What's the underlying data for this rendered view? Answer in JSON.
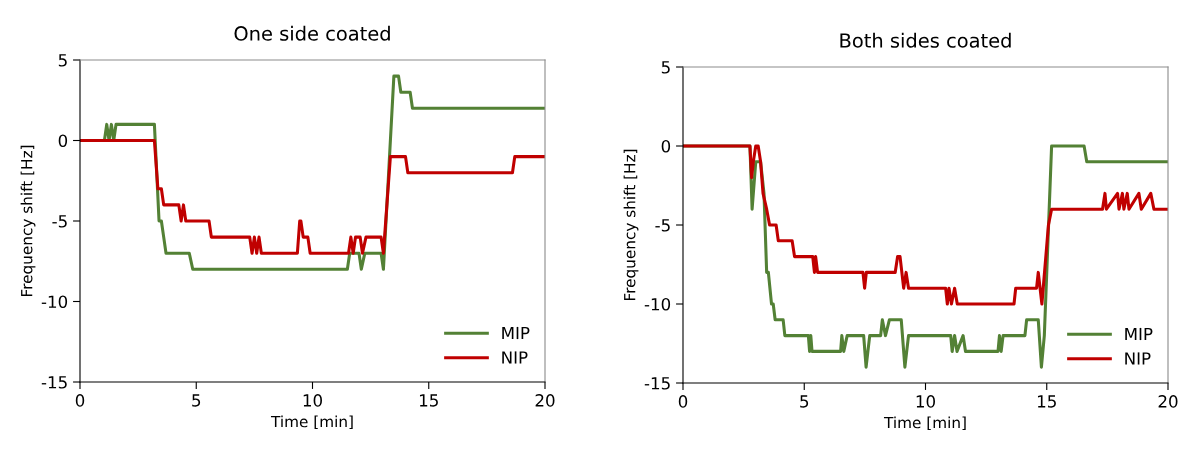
{
  "chart_data": [
    {
      "type": "line",
      "title": "One side coated",
      "xlabel": "Time [min]",
      "ylabel": "Frequency shift [Hz]",
      "xlim": [
        0,
        20
      ],
      "ylim": [
        -15,
        5
      ],
      "xticks": [
        0,
        5,
        10,
        15,
        20
      ],
      "yticks": [
        5,
        0,
        -5,
        -10,
        -15
      ],
      "grid": false,
      "legend": "bottom right",
      "marker": "none",
      "line_style": "solid",
      "series": [
        {
          "name": "MIP",
          "color": "#538135",
          "x": [
            0,
            1.05,
            1.15,
            1.25,
            1.35,
            1.45,
            1.55,
            3.2,
            3.4,
            3.5,
            3.6,
            3.7,
            4.7,
            4.85,
            11.5,
            11.6,
            12.0,
            12.1,
            12.25,
            12.95,
            13.05,
            13.5,
            13.7,
            13.8,
            14.2,
            14.3,
            20
          ],
          "values": [
            0,
            0,
            1,
            0,
            1,
            0,
            1,
            1,
            -5,
            -5,
            -6,
            -7,
            -7,
            -8,
            -8,
            -7,
            -7,
            -8,
            -7,
            -7,
            -8,
            4,
            4,
            3,
            3,
            2,
            2
          ]
        },
        {
          "name": "NIP",
          "color": "#c00000",
          "x": [
            0,
            3.2,
            3.35,
            3.5,
            3.6,
            4.25,
            4.35,
            4.45,
            4.55,
            5.55,
            5.65,
            7.3,
            7.4,
            7.5,
            7.6,
            7.7,
            7.8,
            9.35,
            9.45,
            9.5,
            9.6,
            9.8,
            9.9,
            11.55,
            11.65,
            11.75,
            11.85,
            12.05,
            12.15,
            12.3,
            12.95,
            13.05,
            13.35,
            14.0,
            14.1,
            18.6,
            18.7,
            20
          ],
          "values": [
            0,
            0,
            -3,
            -3,
            -4,
            -4,
            -5,
            -4,
            -5,
            -5,
            -6,
            -6,
            -7,
            -6,
            -7,
            -6,
            -7,
            -7,
            -5,
            -5,
            -6,
            -6,
            -7,
            -7,
            -6,
            -7,
            -6,
            -6,
            -7,
            -6,
            -6,
            -7,
            -1,
            -1,
            -2,
            -2,
            -1,
            -1
          ]
        }
      ]
    },
    {
      "type": "line",
      "title": "Both sides coated",
      "xlabel": "Time [min]",
      "ylabel": "Frequency shift [Hz]",
      "xlim": [
        0,
        20
      ],
      "ylim": [
        -15,
        5
      ],
      "xticks": [
        0,
        5,
        10,
        15,
        20
      ],
      "yticks": [
        5,
        0,
        -5,
        -10,
        -15
      ],
      "grid": false,
      "legend": "bottom right",
      "marker": "none",
      "line_style": "solid",
      "series": [
        {
          "name": "MIP",
          "color": "#538135",
          "x": [
            0,
            2.76,
            2.85,
            2.95,
            3.0,
            3.2,
            3.34,
            3.45,
            3.52,
            3.65,
            3.72,
            3.8,
            4.13,
            4.2,
            5.17,
            5.22,
            5.27,
            5.32,
            6.5,
            6.55,
            6.63,
            6.77,
            7.45,
            7.55,
            7.7,
            8.15,
            8.22,
            8.35,
            8.51,
            9.0,
            9.15,
            9.3,
            11.04,
            11.1,
            11.2,
            11.3,
            11.55,
            11.65,
            12.99,
            13.05,
            13.12,
            13.2,
            14.1,
            14.17,
            14.65,
            14.78,
            14.9,
            15.2,
            16.54,
            16.65,
            20
          ],
          "values": [
            0,
            0,
            -4,
            -2,
            -1,
            -1,
            -3,
            -8,
            -8,
            -10,
            -10,
            -11,
            -11,
            -12,
            -12,
            -13,
            -12,
            -13,
            -13,
            -12,
            -13,
            -12,
            -12,
            -14,
            -12,
            -12,
            -11,
            -12,
            -11,
            -11,
            -14,
            -12,
            -12,
            -13,
            -12,
            -13,
            -12,
            -13,
            -13,
            -12,
            -13,
            -12,
            -12,
            -11,
            -11,
            -14,
            -12,
            0,
            0,
            -1,
            -1
          ]
        },
        {
          "name": "NIP",
          "color": "#c00000",
          "x": [
            0,
            2.76,
            2.83,
            2.9,
            3.0,
            3.1,
            3.2,
            3.3,
            3.45,
            3.57,
            3.84,
            3.93,
            4.5,
            4.6,
            5.35,
            5.42,
            5.47,
            5.55,
            7.42,
            7.49,
            7.56,
            8.75,
            8.85,
            8.95,
            9.1,
            9.2,
            9.3,
            10.83,
            10.9,
            10.97,
            11.07,
            11.2,
            11.31,
            13.65,
            13.72,
            14.58,
            14.65,
            14.8,
            15.07,
            15.2,
            17.3,
            17.4,
            17.46,
            17.92,
            17.98,
            18.12,
            18.18,
            18.32,
            18.39,
            18.8,
            18.9,
            19.29,
            19.42,
            20
          ],
          "values": [
            0,
            0,
            -2,
            -1,
            0,
            0,
            -1,
            -3,
            -4,
            -5,
            -5,
            -6,
            -6,
            -7,
            -7,
            -8,
            -7,
            -8,
            -8,
            -9,
            -8,
            -8,
            -7,
            -7,
            -9,
            -8,
            -9,
            -9,
            -10,
            -9,
            -10,
            -9,
            -10,
            -10,
            -9,
            -9,
            -8,
            -10,
            -5,
            -4,
            -4,
            -3,
            -4,
            -3,
            -4,
            -3,
            -4,
            -3,
            -4,
            -3,
            -4,
            -3,
            -4,
            -4
          ]
        }
      ]
    }
  ]
}
